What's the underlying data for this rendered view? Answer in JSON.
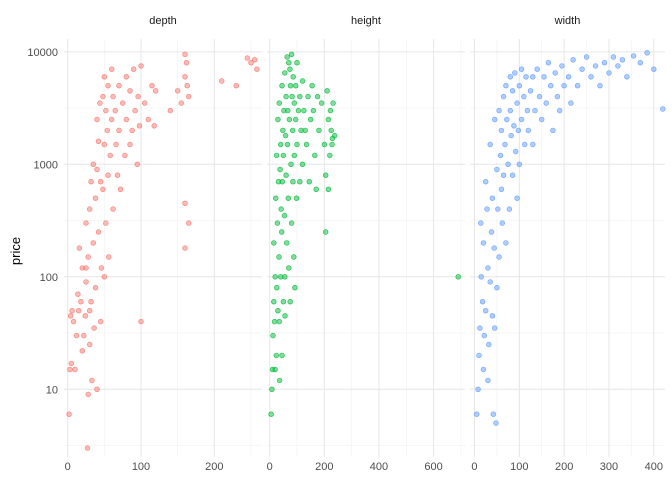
{
  "chart_data": {
    "type": "scatter",
    "subtype": "faceted",
    "y_scale": "log10",
    "ylabel": "price",
    "xlabel": "",
    "ylim": [
      2.5,
      13000
    ],
    "y_ticks": [
      10,
      100,
      1000,
      10000
    ],
    "y_tick_labels": [
      "10",
      "100",
      "1000",
      "10000"
    ],
    "grid": true,
    "panels": [
      {
        "name": "depth",
        "color": "#F8766D",
        "xlim": [
          -5,
          265
        ],
        "x_ticks": [
          0,
          100,
          200
        ],
        "x_tick_labels": [
          "0",
          "100",
          "200"
        ],
        "points": [
          [
            2,
            6
          ],
          [
            3,
            15
          ],
          [
            4,
            45
          ],
          [
            5,
            17
          ],
          [
            6,
            50
          ],
          [
            8,
            40
          ],
          [
            10,
            15
          ],
          [
            12,
            30
          ],
          [
            14,
            70
          ],
          [
            15,
            50
          ],
          [
            16,
            180
          ],
          [
            18,
            60
          ],
          [
            20,
            120
          ],
          [
            20,
            22
          ],
          [
            22,
            30
          ],
          [
            24,
            45
          ],
          [
            25,
            300
          ],
          [
            25,
            90
          ],
          [
            27,
            3
          ],
          [
            28,
            9
          ],
          [
            28,
            150
          ],
          [
            30,
            400
          ],
          [
            30,
            25
          ],
          [
            32,
            700
          ],
          [
            32,
            60
          ],
          [
            33,
            12
          ],
          [
            35,
            1000
          ],
          [
            35,
            200
          ],
          [
            36,
            35
          ],
          [
            38,
            500
          ],
          [
            38,
            80
          ],
          [
            40,
            2500
          ],
          [
            40,
            900
          ],
          [
            40,
            10
          ],
          [
            42,
            1600
          ],
          [
            42,
            250
          ],
          [
            44,
            3500
          ],
          [
            45,
            700
          ],
          [
            45,
            40
          ],
          [
            46,
            120
          ],
          [
            48,
            4000
          ],
          [
            48,
            600
          ],
          [
            50,
            6000
          ],
          [
            50,
            1500
          ],
          [
            50,
            100
          ],
          [
            52,
            3000
          ],
          [
            52,
            300
          ],
          [
            54,
            2000
          ],
          [
            55,
            5000
          ],
          [
            55,
            800
          ],
          [
            56,
            150
          ],
          [
            58,
            1200
          ],
          [
            60,
            7000
          ],
          [
            60,
            2500
          ],
          [
            62,
            4000
          ],
          [
            62,
            400
          ],
          [
            65,
            3000
          ],
          [
            66,
            1500
          ],
          [
            68,
            800
          ],
          [
            70,
            5000
          ],
          [
            70,
            2000
          ],
          [
            72,
            600
          ],
          [
            75,
            3500
          ],
          [
            78,
            1200
          ],
          [
            80,
            6000
          ],
          [
            80,
            2500
          ],
          [
            85,
            4500
          ],
          [
            85,
            1500
          ],
          [
            88,
            2000
          ],
          [
            90,
            7000
          ],
          [
            92,
            3000
          ],
          [
            95,
            1000
          ],
          [
            96,
            4000
          ],
          [
            98,
            2200
          ],
          [
            100,
            40
          ],
          [
            100,
            7500
          ],
          [
            105,
            3500
          ],
          [
            110,
            2500
          ],
          [
            115,
            5000
          ],
          [
            118,
            2200
          ],
          [
            120,
            4500
          ],
          [
            140,
            3000
          ],
          [
            150,
            4500
          ],
          [
            155,
            3500
          ],
          [
            160,
            6000
          ],
          [
            160,
            9500
          ],
          [
            162,
            8000
          ],
          [
            163,
            5000
          ],
          [
            165,
            4000
          ],
          [
            160,
            450
          ],
          [
            160,
            180
          ],
          [
            165,
            300
          ],
          [
            210,
            5500
          ],
          [
            230,
            5000
          ],
          [
            245,
            8800
          ],
          [
            250,
            8000
          ],
          [
            255,
            8500
          ],
          [
            258,
            7000
          ],
          [
            25,
            120
          ],
          [
            30,
            50
          ]
        ]
      },
      {
        "name": "height",
        "color": "#00BA38",
        "xlim": [
          -10,
          715
        ],
        "x_ticks": [
          0,
          200,
          400,
          600
        ],
        "x_tick_labels": [
          "0",
          "200",
          "400",
          "600"
        ],
        "points": [
          [
            5,
            6
          ],
          [
            8,
            10
          ],
          [
            10,
            15
          ],
          [
            12,
            30
          ],
          [
            15,
            60
          ],
          [
            15,
            200
          ],
          [
            18,
            40
          ],
          [
            20,
            15
          ],
          [
            20,
            100
          ],
          [
            22,
            500
          ],
          [
            24,
            20
          ],
          [
            25,
            1200
          ],
          [
            26,
            80
          ],
          [
            28,
            300
          ],
          [
            30,
            2500
          ],
          [
            30,
            50
          ],
          [
            32,
            700
          ],
          [
            34,
            150
          ],
          [
            35,
            3500
          ],
          [
            35,
            40
          ],
          [
            36,
            12
          ],
          [
            38,
            900
          ],
          [
            40,
            1500
          ],
          [
            40,
            100
          ],
          [
            42,
            400
          ],
          [
            44,
            250
          ],
          [
            45,
            5000
          ],
          [
            45,
            20
          ],
          [
            46,
            700
          ],
          [
            48,
            2000
          ],
          [
            50,
            60
          ],
          [
            50,
            1200
          ],
          [
            52,
            3000
          ],
          [
            54,
            350
          ],
          [
            55,
            6500
          ],
          [
            55,
            100
          ],
          [
            56,
            45
          ],
          [
            58,
            1800
          ],
          [
            60,
            800
          ],
          [
            60,
            4000
          ],
          [
            62,
            200
          ],
          [
            64,
            9000
          ],
          [
            65,
            1500
          ],
          [
            66,
            3000
          ],
          [
            68,
            500
          ],
          [
            70,
            8000
          ],
          [
            70,
            120
          ],
          [
            72,
            2500
          ],
          [
            74,
            7000
          ],
          [
            75,
            60
          ],
          [
            76,
            5000
          ],
          [
            78,
            1000
          ],
          [
            80,
            9500
          ],
          [
            80,
            300
          ],
          [
            82,
            4000
          ],
          [
            84,
            2000
          ],
          [
            85,
            700
          ],
          [
            86,
            6000
          ],
          [
            88,
            150
          ],
          [
            90,
            3500
          ],
          [
            90,
            1200
          ],
          [
            92,
            80
          ],
          [
            95,
            5000
          ],
          [
            95,
            2500
          ],
          [
            98,
            500
          ],
          [
            100,
            8000
          ],
          [
            100,
            1500
          ],
          [
            105,
            3000
          ],
          [
            110,
            4000
          ],
          [
            110,
            700
          ],
          [
            115,
            2000
          ],
          [
            120,
            5500
          ],
          [
            120,
            1000
          ],
          [
            125,
            3000
          ],
          [
            130,
            2000
          ],
          [
            135,
            1500
          ],
          [
            140,
            4000
          ],
          [
            145,
            700
          ],
          [
            150,
            2500
          ],
          [
            155,
            5000
          ],
          [
            160,
            3000
          ],
          [
            165,
            1200
          ],
          [
            170,
            600
          ],
          [
            175,
            4000
          ],
          [
            180,
            2000
          ],
          [
            190,
            3500
          ],
          [
            200,
            1500
          ],
          [
            205,
            800
          ],
          [
            210,
            4500
          ],
          [
            215,
            2500
          ],
          [
            220,
            1200
          ],
          [
            222,
            3000
          ],
          [
            225,
            2000
          ],
          [
            228,
            1500
          ],
          [
            230,
            1700
          ],
          [
            232,
            3500
          ],
          [
            238,
            1800
          ],
          [
            205,
            250
          ],
          [
            215,
            600
          ],
          [
            690,
            100
          ]
        ]
      },
      {
        "name": "width",
        "color": "#619CFF",
        "xlim": [
          -10,
          425
        ],
        "x_ticks": [
          0,
          100,
          200,
          300,
          400
        ],
        "x_tick_labels": [
          "0",
          "100",
          "200",
          "300",
          "400"
        ],
        "points": [
          [
            5,
            6
          ],
          [
            8,
            10
          ],
          [
            10,
            20
          ],
          [
            12,
            35
          ],
          [
            14,
            300
          ],
          [
            15,
            100
          ],
          [
            18,
            60
          ],
          [
            20,
            200
          ],
          [
            20,
            15
          ],
          [
            22,
            30
          ],
          [
            25,
            700
          ],
          [
            25,
            50
          ],
          [
            28,
            400
          ],
          [
            30,
            120
          ],
          [
            30,
            12
          ],
          [
            32,
            25
          ],
          [
            35,
            1500
          ],
          [
            35,
            90
          ],
          [
            38,
            250
          ],
          [
            40,
            500
          ],
          [
            40,
            45
          ],
          [
            42,
            6
          ],
          [
            44,
            180
          ],
          [
            45,
            2500
          ],
          [
            45,
            35
          ],
          [
            48,
            5
          ],
          [
            50,
            900
          ],
          [
            50,
            80
          ],
          [
            52,
            400
          ],
          [
            55,
            3000
          ],
          [
            55,
            150
          ],
          [
            58,
            1200
          ],
          [
            60,
            600
          ],
          [
            60,
            2000
          ],
          [
            62,
            300
          ],
          [
            65,
            4000
          ],
          [
            65,
            800
          ],
          [
            68,
            1500
          ],
          [
            70,
            200
          ],
          [
            70,
            5000
          ],
          [
            72,
            2500
          ],
          [
            75,
            1000
          ],
          [
            78,
            400
          ],
          [
            80,
            6000
          ],
          [
            80,
            3000
          ],
          [
            82,
            1800
          ],
          [
            85,
            800
          ],
          [
            85,
            4500
          ],
          [
            88,
            2200
          ],
          [
            90,
            6500
          ],
          [
            92,
            1300
          ],
          [
            95,
            3500
          ],
          [
            95,
            500
          ],
          [
            98,
            2000
          ],
          [
            100,
            5000
          ],
          [
            100,
            1000
          ],
          [
            105,
            7000
          ],
          [
            105,
            2500
          ],
          [
            110,
            4000
          ],
          [
            112,
            1500
          ],
          [
            115,
            6000
          ],
          [
            118,
            3000
          ],
          [
            120,
            2000
          ],
          [
            125,
            4500
          ],
          [
            130,
            6000
          ],
          [
            130,
            1500
          ],
          [
            135,
            3000
          ],
          [
            140,
            7000
          ],
          [
            145,
            4000
          ],
          [
            150,
            2500
          ],
          [
            155,
            6000
          ],
          [
            160,
            3500
          ],
          [
            165,
            8000
          ],
          [
            170,
            5000
          ],
          [
            175,
            2000
          ],
          [
            180,
            6500
          ],
          [
            185,
            4000
          ],
          [
            190,
            3000
          ],
          [
            195,
            7500
          ],
          [
            200,
            5000
          ],
          [
            210,
            6000
          ],
          [
            215,
            3500
          ],
          [
            220,
            8500
          ],
          [
            230,
            5000
          ],
          [
            240,
            7000
          ],
          [
            250,
            9000
          ],
          [
            260,
            6000
          ],
          [
            270,
            7500
          ],
          [
            280,
            5000
          ],
          [
            290,
            8000
          ],
          [
            300,
            6500
          ],
          [
            310,
            9000
          ],
          [
            320,
            7500
          ],
          [
            330,
            8500
          ],
          [
            340,
            6000
          ],
          [
            355,
            9200
          ],
          [
            370,
            8000
          ],
          [
            385,
            9800
          ],
          [
            400,
            7000
          ],
          [
            420,
            3100
          ]
        ]
      }
    ]
  }
}
